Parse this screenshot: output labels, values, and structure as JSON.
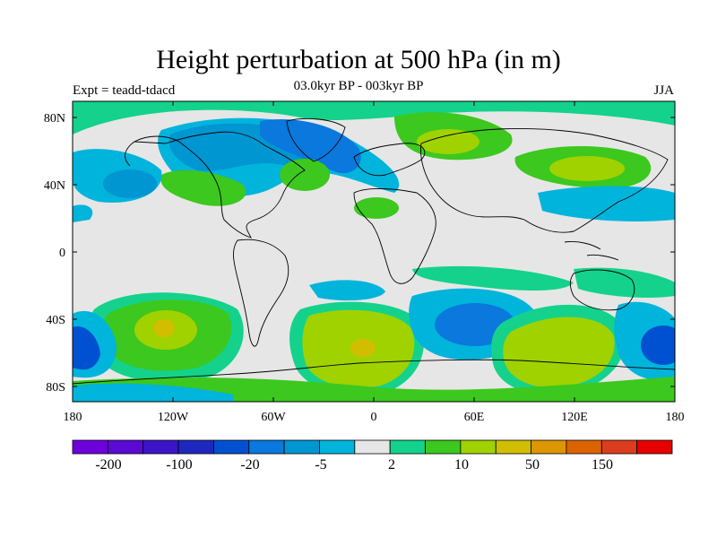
{
  "title": "Height perturbation at 500 hPa (in m)",
  "expt_label": "Expt = teadd-tdacd",
  "subtitle": "03.0kyr BP - 003kyr BP",
  "season": "JJA",
  "lat_labels": [
    "80N",
    "40N",
    "0",
    "40S",
    "80S"
  ],
  "lon_labels": [
    "180",
    "120W",
    "60W",
    "0",
    "60E",
    "120E",
    "180"
  ],
  "colorbar": {
    "colors": [
      "#6e00dc",
      "#5a0ad2",
      "#3c14c8",
      "#1e28be",
      "#0050d2",
      "#0a78dc",
      "#0096d2",
      "#00b4dc",
      "#e6e6e6",
      "#14d28c",
      "#3cc81e",
      "#a0d200",
      "#d2be00",
      "#dc9600",
      "#dc6400",
      "#dc3c1e",
      "#e60000"
    ],
    "tick_labels": [
      "-200",
      "-100",
      "-20",
      "-5",
      "2",
      "10",
      "50",
      "150"
    ]
  }
}
